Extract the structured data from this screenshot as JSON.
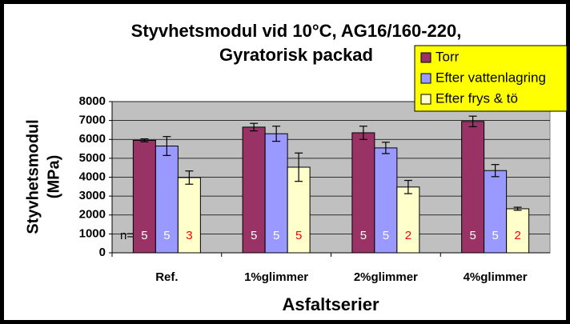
{
  "chart_data": {
    "type": "bar",
    "title": [
      "Styvhetsmodul vid 10°C, AG16/160-220,",
      "Gyratorisk packad"
    ],
    "y_label": [
      "Styvhetsmodul",
      "(MPa)"
    ],
    "x_label": "Asfaltserier",
    "categories": [
      "Ref.",
      "1%glimmer",
      "2%glimmer",
      "4%glimmer"
    ],
    "ylim": [
      0,
      8000
    ],
    "yticks": [
      0,
      1000,
      2000,
      3000,
      4000,
      5000,
      6000,
      7000,
      8000
    ],
    "grid": true,
    "legend": "top-right",
    "n_label": "n=",
    "series": [
      {
        "name": "Torr",
        "color": "#993366",
        "values": [
          5950,
          6650,
          6350,
          6950
        ],
        "error": [
          80,
          200,
          350,
          280
        ],
        "n": [
          5,
          5,
          5,
          5
        ],
        "n_color": "#ffffff"
      },
      {
        "name": "Efter vattenlagring",
        "color": "#9999ff",
        "values": [
          5650,
          6300,
          5550,
          4350
        ],
        "error": [
          500,
          400,
          300,
          320
        ],
        "n": [
          5,
          5,
          5,
          5
        ],
        "n_color": "#ffffff"
      },
      {
        "name": "Efter frys & tö",
        "color": "#ffffcc",
        "values": [
          3980,
          4530,
          3480,
          2330
        ],
        "error": [
          350,
          750,
          350,
          80
        ],
        "n": [
          3,
          5,
          2,
          2
        ],
        "n_color": "#ff0000"
      }
    ]
  }
}
